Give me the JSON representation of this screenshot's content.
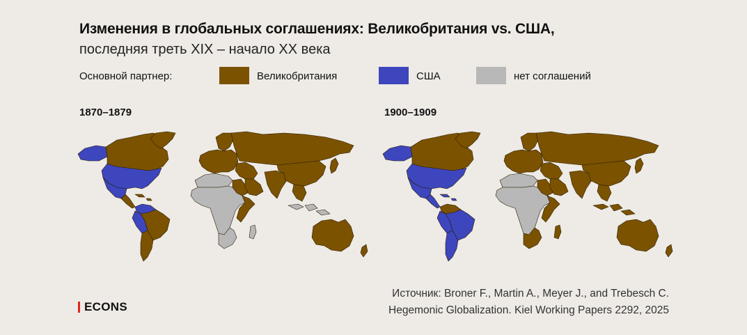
{
  "header": {
    "title": "Изменения в глобальных соглашениях: Великобритания vs. США,",
    "subtitle": "последняя треть XIX – начало XX века"
  },
  "legend": {
    "label": "Основной партнер:",
    "items": [
      {
        "label": "Великобритания",
        "color": "#7b5200"
      },
      {
        "label": "США",
        "color": "#3d46bd"
      },
      {
        "label": "нет соглашений",
        "color": "#b8b8b8"
      }
    ]
  },
  "maps": [
    {
      "period": "1870–1879",
      "regions": {
        "north_america": "#7b5200",
        "alaska": "#3d46bd",
        "greenland": "#7b5200",
        "usa": "#3d46bd",
        "mexico": "#3d46bd",
        "central_america": "#7b5200",
        "caribbean": "#7b5200",
        "south_america": "#7b5200",
        "sa_west": "#3d46bd",
        "sa_north": "#3d46bd",
        "sa_south": "#7b5200",
        "europe": "#7b5200",
        "scandinavia": "#7b5200",
        "russia": "#7b5200",
        "north_africa": "#b8b8b8",
        "egypt": "#7b5200",
        "africa": "#b8b8b8",
        "east_africa": "#7b5200",
        "south_africa": "#b8b8b8",
        "madagascar": "#b8b8b8",
        "middle_east": "#7b5200",
        "arabia": "#7b5200",
        "india": "#7b5200",
        "china": "#7b5200",
        "japan": "#7b5200",
        "se_asia": "#7b5200",
        "indonesia": "#b8b8b8",
        "australia": "#7b5200",
        "new_zealand": "#7b5200"
      }
    },
    {
      "period": "1900–1909",
      "regions": {
        "north_america": "#7b5200",
        "alaska": "#3d46bd",
        "greenland": "#7b5200",
        "usa": "#3d46bd",
        "mexico": "#3d46bd",
        "central_america": "#3d46bd",
        "caribbean": "#3d46bd",
        "south_america": "#3d46bd",
        "sa_west": "#3d46bd",
        "sa_north": "#7b5200",
        "sa_south": "#3d46bd",
        "europe": "#7b5200",
        "scandinavia": "#7b5200",
        "russia": "#7b5200",
        "north_africa": "#b8b8b8",
        "egypt": "#7b5200",
        "africa": "#b8b8b8",
        "east_africa": "#7b5200",
        "south_africa": "#7b5200",
        "madagascar": "#7b5200",
        "middle_east": "#7b5200",
        "arabia": "#7b5200",
        "india": "#7b5200",
        "china": "#7b5200",
        "japan": "#7b5200",
        "se_asia": "#7b5200",
        "indonesia": "#7b5200",
        "australia": "#7b5200",
        "new_zealand": "#7b5200"
      }
    }
  ],
  "logo": "ECONS",
  "source": {
    "line1": "Источник: Broner F., Martin A., Meyer J., and Trebesch C.",
    "line2": "Hegemonic Globalization. Kiel Working Papers 2292, 2025"
  }
}
